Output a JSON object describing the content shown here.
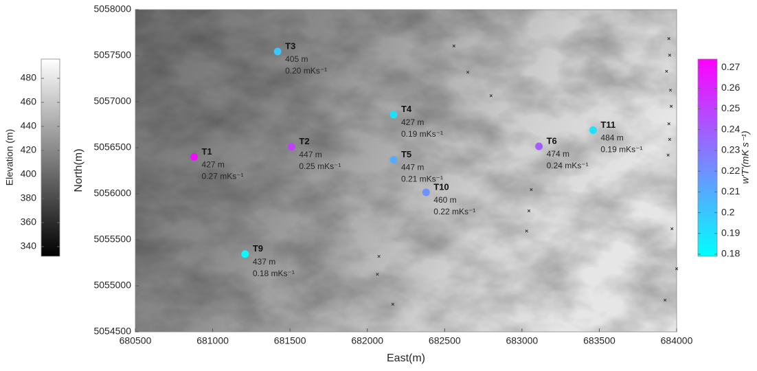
{
  "chart_data": {
    "type": "scatter",
    "xlabel": "East(m)",
    "ylabel": "North(m)",
    "xlim": [
      680500,
      684000
    ],
    "xticks": [
      680500,
      681000,
      681500,
      682000,
      682500,
      683000,
      683500,
      684000
    ],
    "ylim": [
      5054500,
      5058000
    ],
    "yticks": [
      5054500,
      5055000,
      5055500,
      5056000,
      5056500,
      5057000,
      5057500,
      5058000
    ],
    "names": [
      "T1",
      "T2",
      "T3",
      "T4",
      "T5",
      "T10",
      "T6",
      "T11",
      "T9"
    ],
    "x": [
      680880,
      681510,
      681420,
      682170,
      682170,
      682380,
      683110,
      683460,
      681210
    ],
    "y": [
      5056400,
      5056510,
      5057545,
      5056860,
      5056370,
      5056015,
      5056515,
      5056690,
      5055345
    ],
    "elevation": [
      427,
      447,
      405,
      427,
      447,
      460,
      474,
      484,
      437
    ],
    "elevation_labels": [
      "427 m",
      "447 m",
      "405 m",
      "427 m",
      "447 m",
      "460 m",
      "474 m",
      "484 m",
      "437 m"
    ],
    "flux": [
      0.27,
      0.25,
      0.2,
      0.19,
      0.21,
      0.22,
      0.24,
      0.19,
      0.18
    ],
    "flux_labels": [
      "0.27 mKs⁻¹",
      "0.25 mKs⁻¹",
      "0.20 mKs⁻¹",
      "0.19 mKs⁻¹",
      "0.21 mKs⁻¹",
      "0.22 mKs⁻¹",
      "0.24 mKs⁻¹",
      "0.19 mKs⁻¹",
      "0.18 mKs⁻¹"
    ],
    "crosses": {
      "color": "#333333",
      "x": [
        682560,
        682650,
        682800,
        683950,
        683955,
        683935,
        683960,
        683965,
        683950,
        683955,
        683945,
        683060,
        683045,
        683030,
        683970,
        684000,
        683925,
        682075,
        682065,
        682165
      ],
      "y": [
        5057605,
        5057320,
        5057065,
        5057685,
        5057505,
        5057330,
        5057125,
        5056950,
        5056760,
        5056590,
        5056420,
        5056045,
        5055815,
        5055595,
        5055620,
        5055185,
        5054845,
        5055320,
        5055125,
        5054800
      ]
    },
    "elevation_colorbar": {
      "label": "Elevation (m)",
      "clim": [
        332,
        496
      ],
      "ticks": [
        340,
        360,
        380,
        400,
        420,
        440,
        460,
        480
      ],
      "colors": [
        "#000000",
        "#ffffff"
      ]
    },
    "flux_colorbar": {
      "label": "w'T'(mK s⁻¹)",
      "clim": [
        0.179,
        0.274
      ],
      "ticks": [
        0.18,
        0.19,
        0.2,
        0.21,
        0.22,
        0.23,
        0.24,
        0.25,
        0.26,
        0.27
      ],
      "colors": [
        "#00ffff",
        "#ff00ff"
      ]
    }
  }
}
